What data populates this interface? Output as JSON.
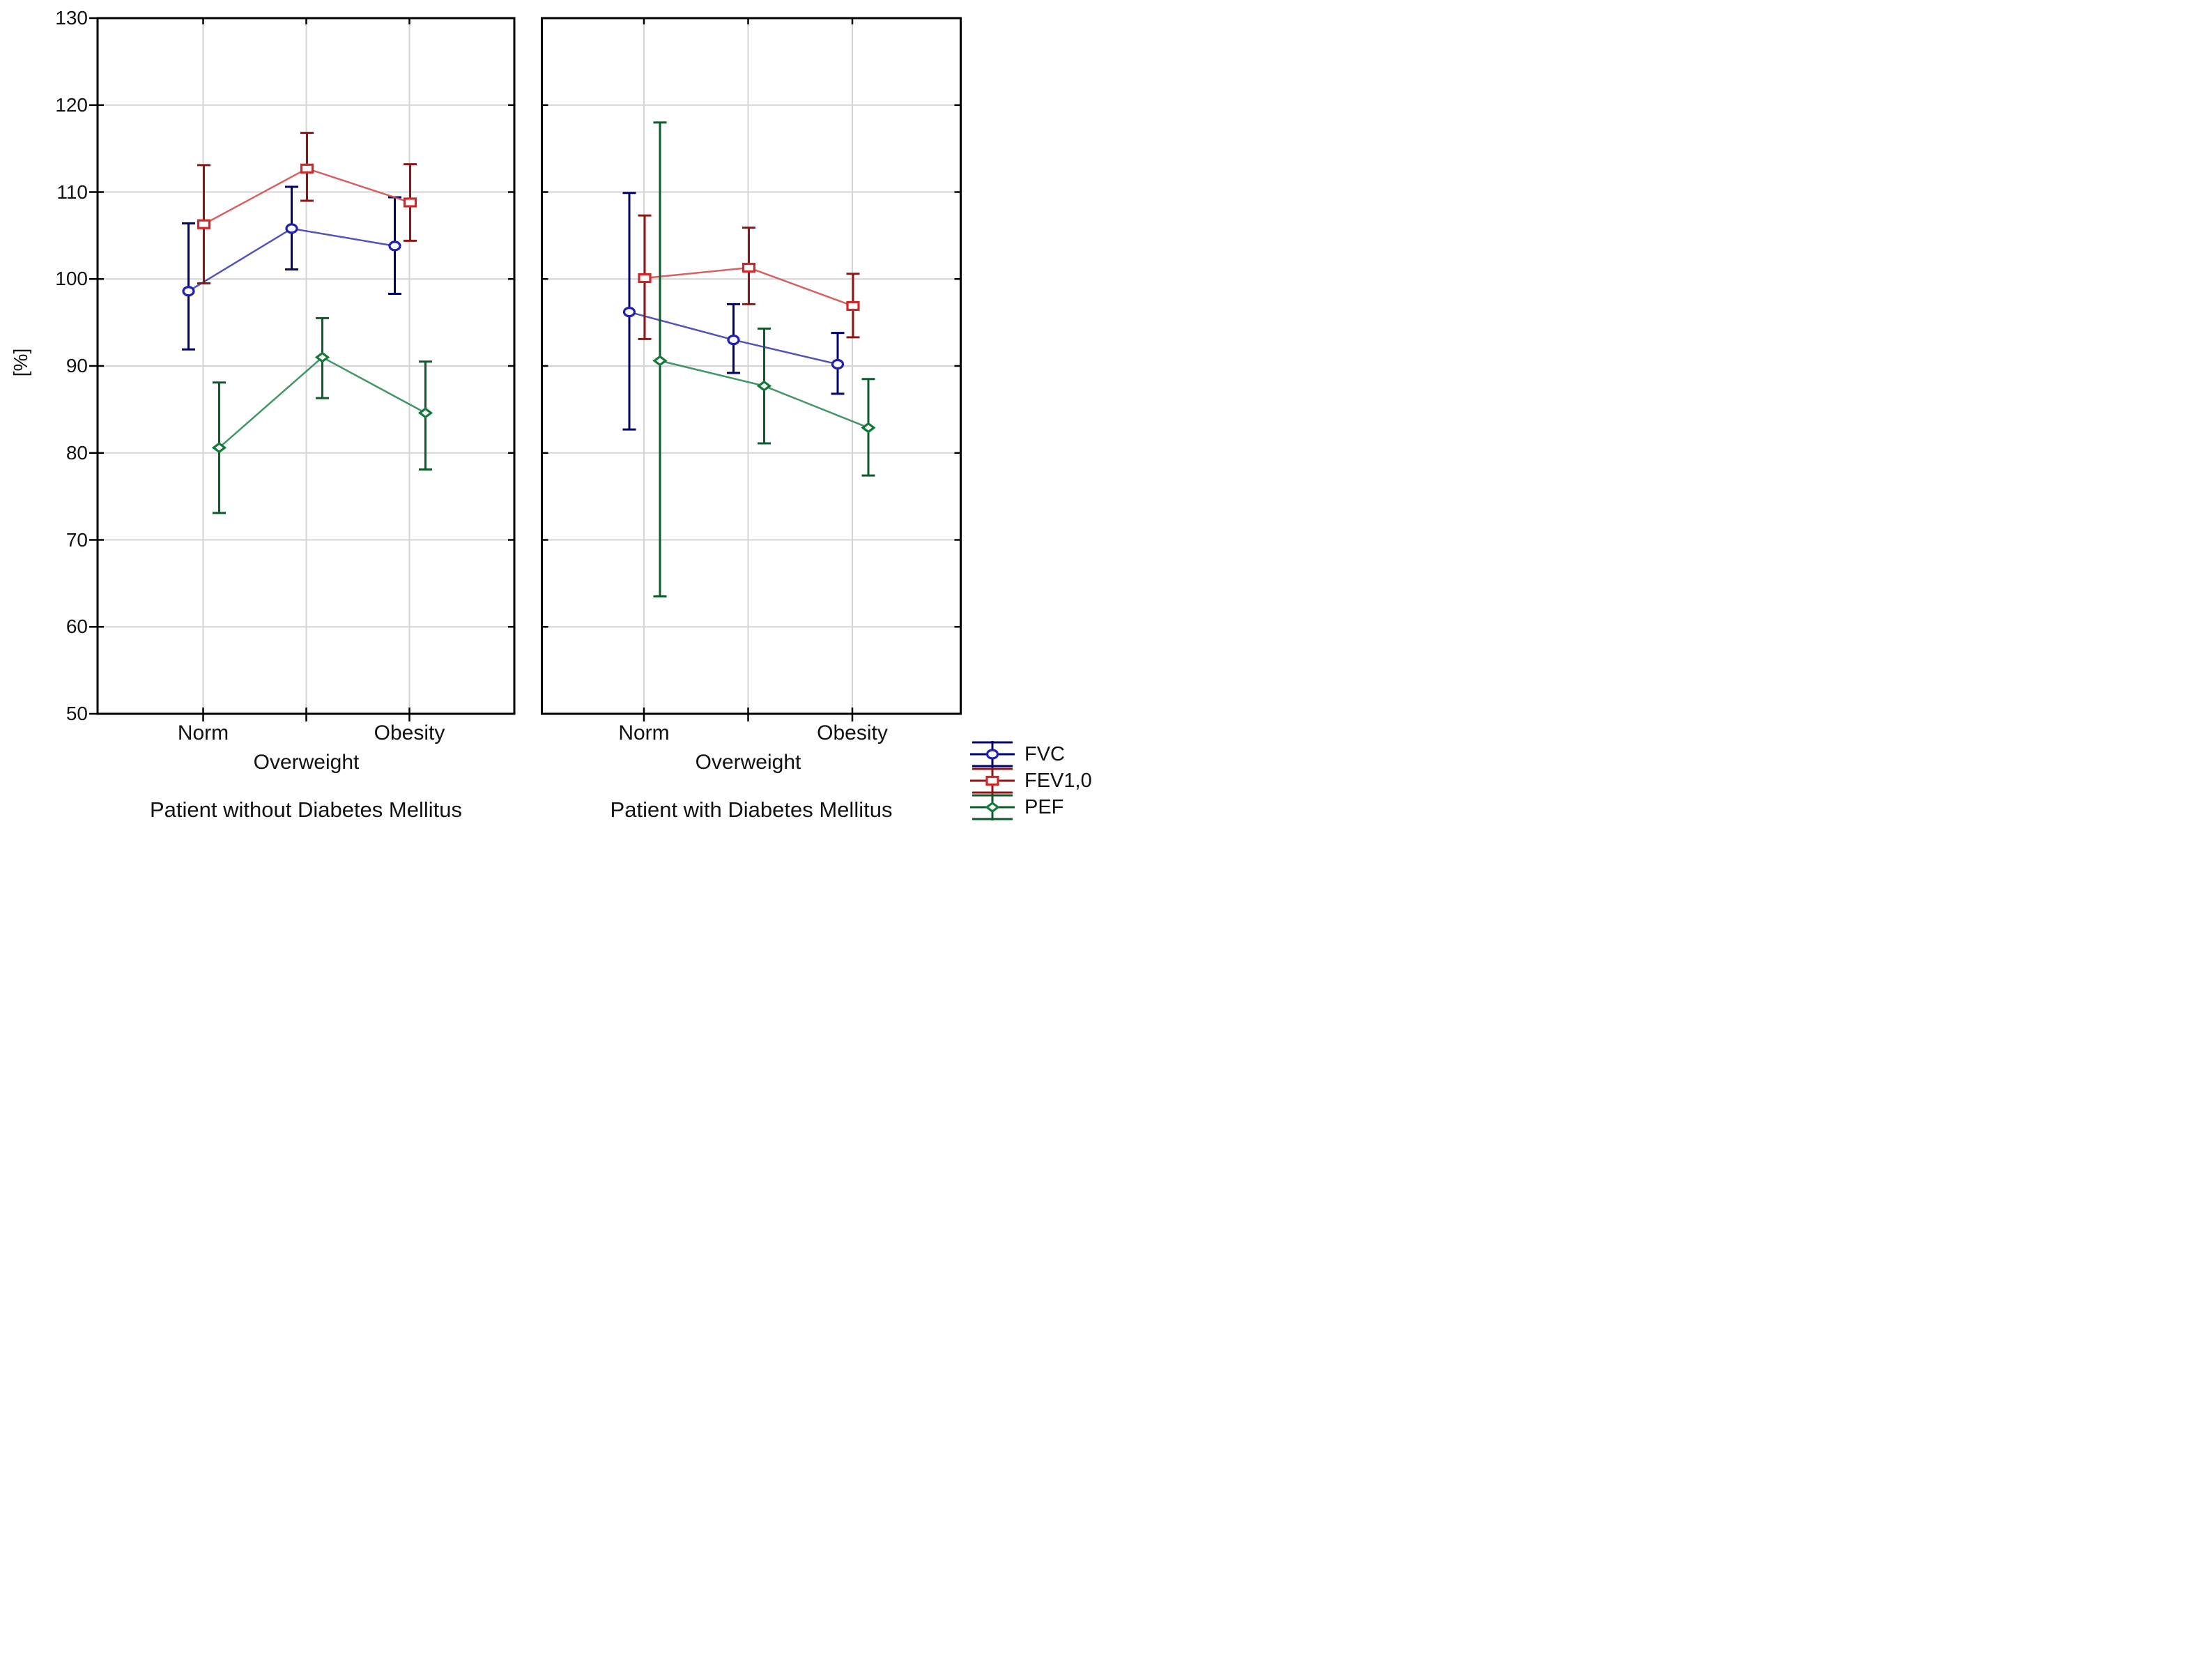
{
  "y_axis": {
    "label": "[%]"
  },
  "chart_data": {
    "type": "line",
    "subtype": "means-with-ci-errorbars",
    "title": "",
    "ylabel": "[%]",
    "xlabel": "",
    "ylim": [
      50,
      130
    ],
    "ytick_step": 10,
    "ytick_labels": [
      "130",
      "120",
      "110",
      "100",
      "90",
      "80",
      "70",
      "60",
      "50"
    ],
    "grid": true,
    "legend_position": "bottom-right",
    "categories": [
      "Norm",
      "Overweight",
      "Obesity"
    ],
    "series_styles": [
      {
        "label": "FVC",
        "marker": "circle",
        "color": "#2020B0",
        "color_dark": "#000070",
        "color_line": "#4040B0"
      },
      {
        "label": "FEV1,0",
        "marker": "square",
        "color": "#D02828",
        "color_dark": "#8E1616",
        "color_line": "#D05050"
      },
      {
        "label": "PEF",
        "marker": "diamond",
        "color": "#127A38",
        "color_dark": "#0D5A2A",
        "color_line": "#2E8B57"
      }
    ],
    "panels": [
      {
        "caption": "Patient without Diabetes Mellitus",
        "series": [
          {
            "label": "FVC",
            "means": [
              98.6,
              105.8,
              103.8
            ],
            "ci_low": [
              91.9,
              101.1,
              98.3
            ],
            "ci_high": [
              106.4,
              110.6,
              109.4
            ]
          },
          {
            "label": "FEV1,0",
            "means": [
              106.3,
              112.7,
              108.8
            ],
            "ci_low": [
              99.5,
              109.0,
              104.4
            ],
            "ci_high": [
              113.1,
              116.8,
              113.2
            ]
          },
          {
            "label": "PEF",
            "means": [
              80.6,
              91.0,
              84.6
            ],
            "ci_low": [
              73.1,
              86.3,
              78.1
            ],
            "ci_high": [
              88.1,
              95.5,
              90.5
            ]
          }
        ]
      },
      {
        "caption": "Patient with Diabetes Mellitus",
        "series": [
          {
            "label": "FVC",
            "means": [
              96.2,
              93.0,
              90.2
            ],
            "ci_low": [
              82.7,
              89.2,
              86.8
            ],
            "ci_high": [
              109.9,
              97.1,
              93.8
            ]
          },
          {
            "label": "FEV1,0",
            "means": [
              100.1,
              101.3,
              96.9
            ],
            "ci_low": [
              93.1,
              97.1,
              93.3
            ],
            "ci_high": [
              107.3,
              105.9,
              100.6
            ]
          },
          {
            "label": "PEF",
            "means": [
              90.6,
              87.7,
              82.9
            ],
            "ci_low": [
              63.5,
              81.1,
              77.4
            ],
            "ci_high": [
              118.0,
              94.3,
              88.5
            ]
          }
        ]
      }
    ],
    "colors": {
      "grid": "#D4D4D4",
      "frame": "#000000",
      "text": "#111111",
      "background": "#FFFFFF"
    }
  }
}
